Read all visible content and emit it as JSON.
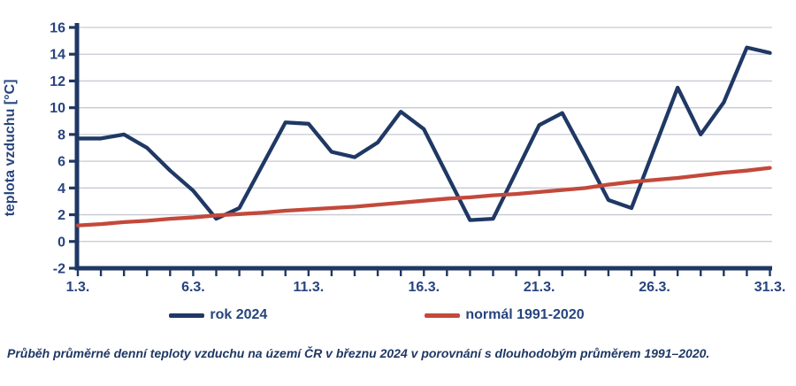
{
  "ui": {
    "colors": {
      "navy_line": "#1f3864",
      "red_line": "#c3493b",
      "axis": "#1f3864",
      "tick_text": "#27447e",
      "gridline": "#c7cad3",
      "caption_text": "#1f3864"
    },
    "legend": [
      {
        "label": "rok 2024",
        "color": "#1f3864"
      },
      {
        "label": "normál 1991-2020",
        "color": "#c3493b"
      }
    ],
    "caption": "Průběh průměrné denní teploty vzduchu na území ČR v březnu 2024 v porovnání s dlouhodobým průměrem 1991–2020."
  },
  "chart_data": {
    "type": "line",
    "title": "",
    "xlabel": "",
    "ylabel": "teplota vzduchu [°C]",
    "ylim": [
      -2,
      16
    ],
    "y_ticks": [
      -2,
      0,
      2,
      4,
      6,
      8,
      10,
      12,
      14,
      16
    ],
    "x_days": [
      1,
      2,
      3,
      4,
      5,
      6,
      7,
      8,
      9,
      10,
      11,
      12,
      13,
      14,
      15,
      16,
      17,
      18,
      19,
      20,
      21,
      22,
      23,
      24,
      25,
      26,
      27,
      28,
      29,
      30,
      31
    ],
    "x_tick_days": [
      1,
      6,
      11,
      16,
      21,
      26,
      31
    ],
    "x_tick_labels": [
      "1.3.",
      "6.3.",
      "11.3.",
      "16.3.",
      "21.3.",
      "26.3.",
      "31.3."
    ],
    "grid": true,
    "legend_position": "bottom",
    "series": [
      {
        "name": "rok 2024",
        "color": "#1f3864",
        "values": [
          7.7,
          7.7,
          8.0,
          7.0,
          5.3,
          3.8,
          1.7,
          2.5,
          5.7,
          8.9,
          8.8,
          6.7,
          6.3,
          7.4,
          9.7,
          8.4,
          5.0,
          1.6,
          1.7,
          5.2,
          8.7,
          9.6,
          6.4,
          3.1,
          2.5,
          7.0,
          11.5,
          8.0,
          10.4,
          14.5,
          14.1
        ]
      },
      {
        "name": "normál 1991-2020",
        "color": "#c3493b",
        "values": [
          1.2,
          1.3,
          1.45,
          1.55,
          1.7,
          1.8,
          1.95,
          2.05,
          2.15,
          2.3,
          2.4,
          2.5,
          2.6,
          2.75,
          2.9,
          3.05,
          3.2,
          3.3,
          3.45,
          3.55,
          3.7,
          3.85,
          4.0,
          4.25,
          4.45,
          4.6,
          4.75,
          4.95,
          5.15,
          5.3,
          5.5
        ]
      }
    ]
  }
}
